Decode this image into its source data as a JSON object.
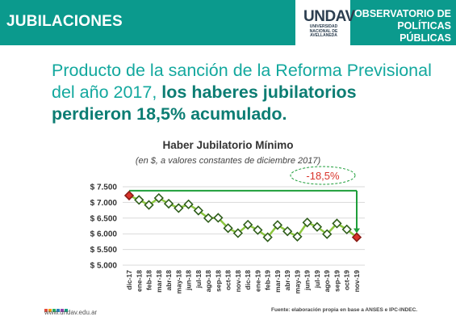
{
  "header": {
    "section": "JUBILACIONES",
    "logo_text": "UNDAV",
    "logo_sub": "Universidad Nacional de Avellaneda",
    "observatory": "OBSERVATORIO DE POLÍTICAS PÚBLICAS"
  },
  "headline": {
    "part1": "Producto de la sanción de la Reforma Previsional del año 2017, ",
    "part2": "los haberes jubilatorios perdieron 18,5% acumulado."
  },
  "footer": {
    "website": "www.undav.edu.ar",
    "source": "Fuente: elaboración propia en base a ANSES e IPC-INDEC."
  },
  "colors": {
    "brand": "#0b9a8d",
    "line": "#8cc63f",
    "marker_border": "#2e5d1a",
    "marker_fill": "#ffffff",
    "highlight": "#d9342b",
    "gridline": "#d9d9d9"
  },
  "chart_data": {
    "type": "line",
    "title": "Haber Jubilatorio Mínimo",
    "subtitle": "(en $, a valores constantes de diciembre 2017)",
    "xlabel": "",
    "ylabel": "",
    "ylim": [
      5000,
      7500
    ],
    "yticks": [
      5000,
      5500,
      6000,
      6500,
      7000,
      7500
    ],
    "ytick_labels": [
      "$ 5.000",
      "$ 5.500",
      "$ 6.000",
      "$ 6.500",
      "$ 7.000",
      "$ 7.500"
    ],
    "grid": true,
    "categories": [
      "dic-17",
      "ene-18",
      "feb-18",
      "mar-18",
      "abr-18",
      "may-18",
      "jun-18",
      "jul-18",
      "ago-18",
      "sep-18",
      "oct-18",
      "nov-18",
      "dic-18",
      "ene-19",
      "feb-19",
      "mar-19",
      "abr-19",
      "may-19",
      "jun-19",
      "jul-19",
      "ago-19",
      "sep-19",
      "oct-19",
      "nov-19"
    ],
    "series": [
      {
        "values": [
          7220,
          7080,
          6920,
          7140,
          6960,
          6820,
          6940,
          6740,
          6500,
          6510,
          6180,
          6020,
          6290,
          6120,
          5890,
          6280,
          6080,
          5910,
          6360,
          6220,
          5990,
          6330,
          6140,
          5890
        ]
      }
    ],
    "annotation": "-18,5%"
  }
}
